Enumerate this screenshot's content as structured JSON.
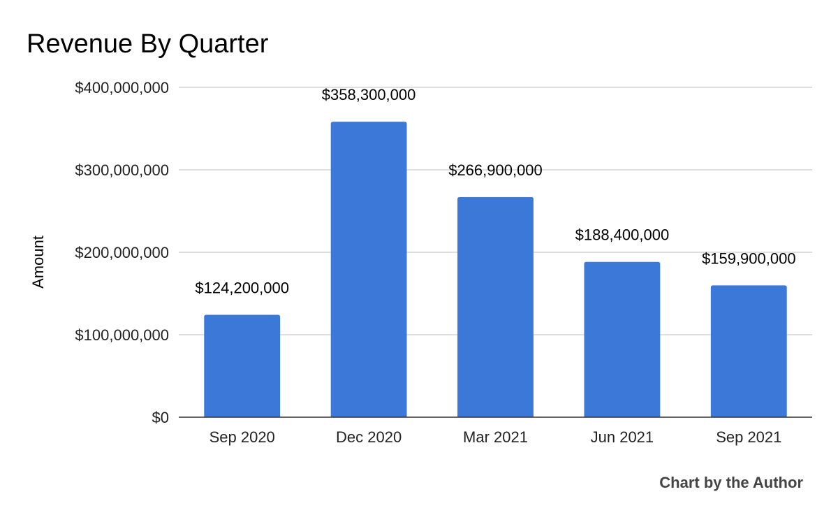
{
  "chart_data": {
    "type": "bar",
    "title": "Revenue By Quarter",
    "xlabel": "",
    "ylabel": "Amount",
    "categories": [
      "Sep 2020",
      "Dec 2020",
      "Mar 2021",
      "Jun 2021",
      "Sep 2021"
    ],
    "values": [
      124200000,
      358300000,
      266900000,
      188400000,
      159900000
    ],
    "data_labels": [
      "$124,200,000",
      "$358,300,000",
      "$266,900,000",
      "$188,400,000",
      "$159,900,000"
    ],
    "ylim": [
      0,
      400000000
    ],
    "yticks": [
      0,
      100000000,
      200000000,
      300000000,
      400000000
    ],
    "ytick_labels": [
      "$0",
      "$100,000,000",
      "$200,000,000",
      "$300,000,000",
      "$400,000,000"
    ],
    "grid": true,
    "legend": "none",
    "bar_color": "#3c78d8",
    "credit": "Chart by the Author"
  }
}
